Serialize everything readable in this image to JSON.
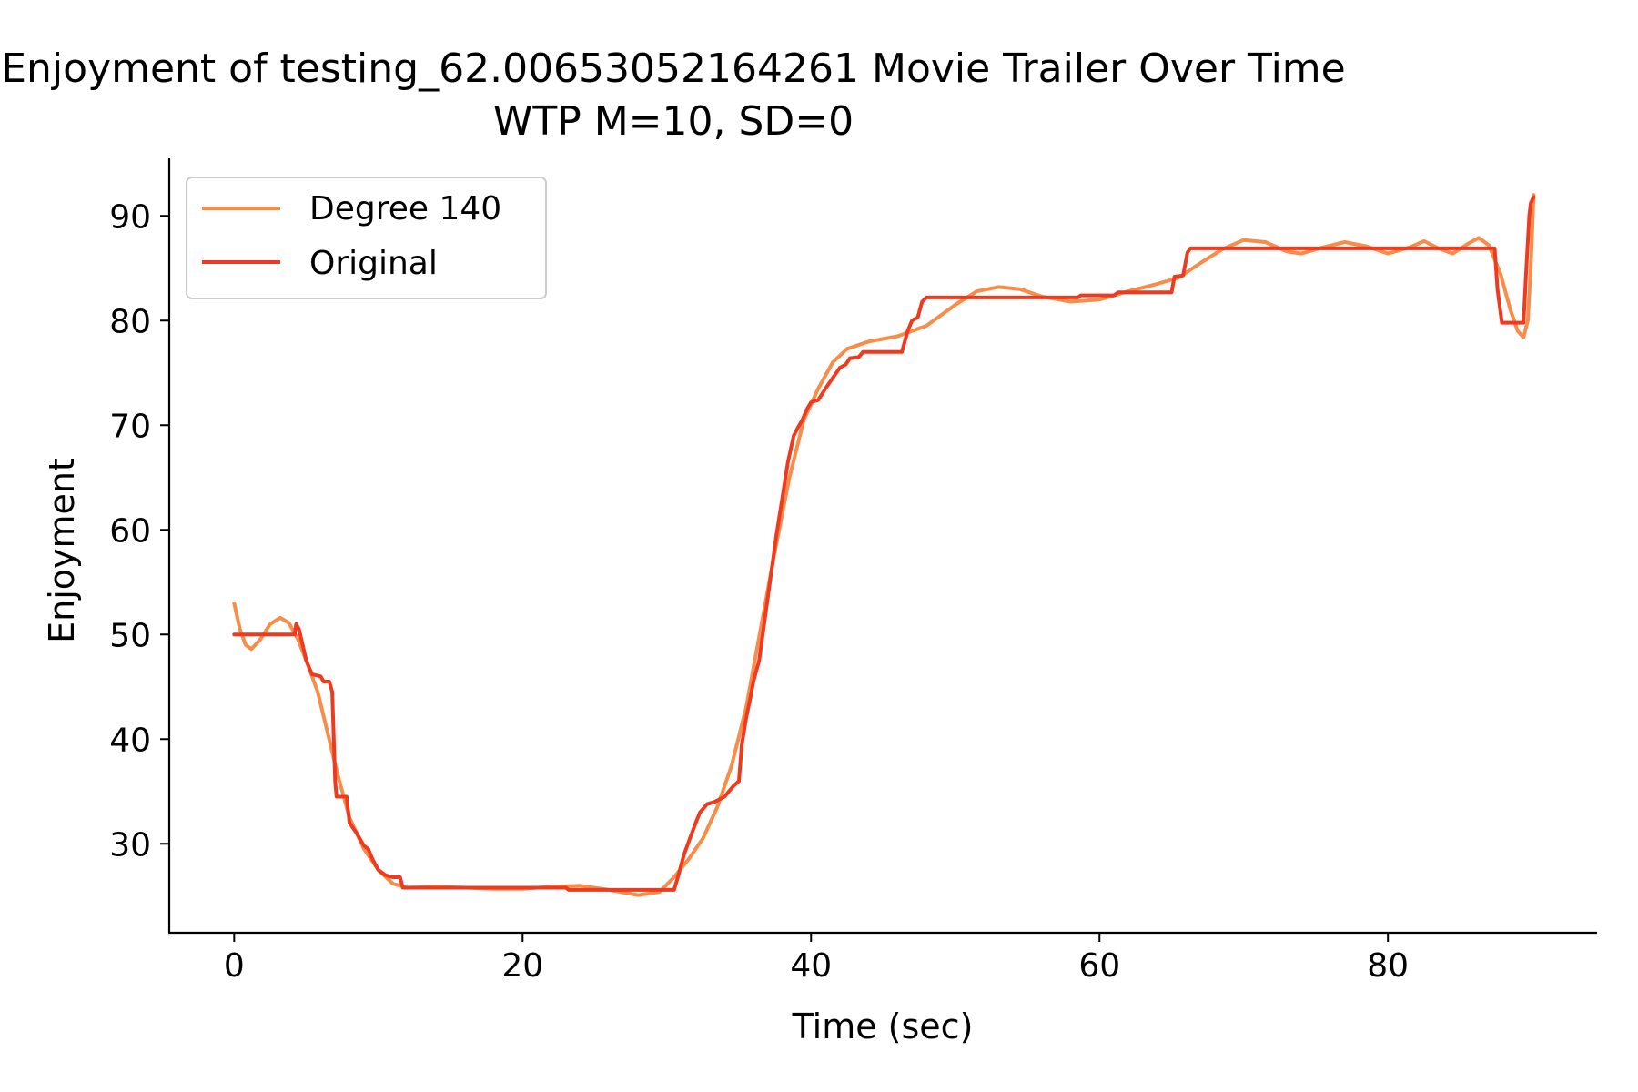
{
  "chart_data": {
    "type": "line",
    "title": "Enjoyment of testing_62.00653052164261 Movie Trailer Over Time",
    "subtitle": "WTP M=10, SD=0",
    "xlabel": "Time (sec)",
    "ylabel": "Enjoyment",
    "xlim": [
      -4.5,
      94.5
    ],
    "ylim": [
      21.5,
      95.5
    ],
    "xticks": [
      0,
      20,
      40,
      60,
      80
    ],
    "yticks": [
      30,
      40,
      50,
      60,
      70,
      80,
      90
    ],
    "grid": false,
    "legend_position": "upper-left",
    "series": [
      {
        "name": "Degree 140",
        "color": "#f88d4a",
        "points": [
          [
            0,
            53
          ],
          [
            0.4,
            50.5
          ],
          [
            0.8,
            49
          ],
          [
            1.2,
            48.6
          ],
          [
            1.8,
            49.5
          ],
          [
            2.5,
            51
          ],
          [
            3.2,
            51.6
          ],
          [
            3.8,
            51.1
          ],
          [
            4.4,
            49.6
          ],
          [
            5,
            47.5
          ],
          [
            5.8,
            44.5
          ],
          [
            6.5,
            40.5
          ],
          [
            7.2,
            36.5
          ],
          [
            8,
            32.5
          ],
          [
            9,
            29.5
          ],
          [
            10,
            27.5
          ],
          [
            11,
            26.2
          ],
          [
            12,
            25.8
          ],
          [
            14,
            25.9
          ],
          [
            16,
            25.8
          ],
          [
            18,
            25.7
          ],
          [
            20,
            25.7
          ],
          [
            22,
            25.9
          ],
          [
            24,
            26
          ],
          [
            26,
            25.6
          ],
          [
            28,
            25.1
          ],
          [
            29.5,
            25.4
          ],
          [
            30.5,
            26.8
          ],
          [
            31.5,
            28.5
          ],
          [
            32.5,
            30.5
          ],
          [
            33.5,
            33.5
          ],
          [
            34.5,
            37.5
          ],
          [
            35.5,
            43
          ],
          [
            36.5,
            50.5
          ],
          [
            37.5,
            58
          ],
          [
            38.5,
            65
          ],
          [
            39.5,
            70.5
          ],
          [
            40.5,
            73.5
          ],
          [
            41.5,
            76
          ],
          [
            42.5,
            77.3
          ],
          [
            44,
            78
          ],
          [
            46,
            78.5
          ],
          [
            48,
            79.5
          ],
          [
            50,
            81.5
          ],
          [
            51.5,
            82.8
          ],
          [
            53,
            83.2
          ],
          [
            54.5,
            83
          ],
          [
            56,
            82.3
          ],
          [
            58,
            81.8
          ],
          [
            60,
            82
          ],
          [
            62,
            82.8
          ],
          [
            64,
            83.5
          ],
          [
            65.5,
            84.1
          ],
          [
            67,
            85.5
          ],
          [
            68.5,
            86.8
          ],
          [
            70,
            87.7
          ],
          [
            71.5,
            87.5
          ],
          [
            73,
            86.6
          ],
          [
            74,
            86.4
          ],
          [
            75.5,
            87
          ],
          [
            77,
            87.5
          ],
          [
            78.5,
            87.1
          ],
          [
            80,
            86.4
          ],
          [
            81.5,
            87
          ],
          [
            82.5,
            87.6
          ],
          [
            83.5,
            86.9
          ],
          [
            84.5,
            86.4
          ],
          [
            85.5,
            87.3
          ],
          [
            86.3,
            87.9
          ],
          [
            87,
            87.2
          ],
          [
            87.8,
            84.5
          ],
          [
            88.5,
            81
          ],
          [
            89,
            79
          ],
          [
            89.4,
            78.4
          ],
          [
            89.7,
            80
          ],
          [
            89.9,
            85
          ],
          [
            90.1,
            92
          ]
        ]
      },
      {
        "name": "Original",
        "color": "#f03a20",
        "points": [
          [
            0,
            50
          ],
          [
            4.2,
            50
          ],
          [
            4.3,
            51
          ],
          [
            4.5,
            50.5
          ],
          [
            5,
            47.5
          ],
          [
            5.4,
            46.2
          ],
          [
            6,
            46
          ],
          [
            6.2,
            45.5
          ],
          [
            6.6,
            45.5
          ],
          [
            6.8,
            44.5
          ],
          [
            7,
            36
          ],
          [
            7.1,
            34.5
          ],
          [
            7.8,
            34.5
          ],
          [
            8,
            32
          ],
          [
            8.5,
            31
          ],
          [
            9,
            29.8
          ],
          [
            9.3,
            29.5
          ],
          [
            9.6,
            28.5
          ],
          [
            10,
            27.5
          ],
          [
            10.5,
            27
          ],
          [
            11,
            26.8
          ],
          [
            11.5,
            26.8
          ],
          [
            11.7,
            25.8
          ],
          [
            23,
            25.8
          ],
          [
            23.2,
            25.6
          ],
          [
            30.5,
            25.6
          ],
          [
            30.8,
            27
          ],
          [
            31.2,
            29
          ],
          [
            31.6,
            30.5
          ],
          [
            32,
            32
          ],
          [
            32.3,
            33
          ],
          [
            32.8,
            33.8
          ],
          [
            33.3,
            34
          ],
          [
            34,
            34.5
          ],
          [
            34.6,
            35.5
          ],
          [
            35,
            36
          ],
          [
            35.2,
            39.5
          ],
          [
            35.5,
            42
          ],
          [
            35.8,
            44
          ],
          [
            36,
            45.5
          ],
          [
            36.4,
            47.5
          ],
          [
            36.8,
            51.5
          ],
          [
            37.2,
            55.5
          ],
          [
            37.6,
            59.5
          ],
          [
            38,
            63
          ],
          [
            38.4,
            66.5
          ],
          [
            38.8,
            69
          ],
          [
            39.1,
            69.8
          ],
          [
            39.4,
            70.5
          ],
          [
            39.7,
            71.5
          ],
          [
            40,
            72.2
          ],
          [
            40.5,
            72.4
          ],
          [
            41,
            73.5
          ],
          [
            41.5,
            74.5
          ],
          [
            42,
            75.5
          ],
          [
            42.4,
            75.8
          ],
          [
            42.7,
            76.4
          ],
          [
            43.3,
            76.5
          ],
          [
            43.6,
            77
          ],
          [
            46.3,
            77
          ],
          [
            46.7,
            79
          ],
          [
            47,
            80
          ],
          [
            47.4,
            80.3
          ],
          [
            47.7,
            81.8
          ],
          [
            48,
            82.2
          ],
          [
            50,
            82.2
          ],
          [
            58.5,
            82.2
          ],
          [
            58.7,
            82.4
          ],
          [
            61,
            82.4
          ],
          [
            61.3,
            82.7
          ],
          [
            65,
            82.7
          ],
          [
            65.2,
            84.2
          ],
          [
            65.8,
            84.3
          ],
          [
            66.1,
            86.5
          ],
          [
            66.3,
            86.9
          ],
          [
            87.4,
            86.9
          ],
          [
            87.6,
            83
          ],
          [
            87.9,
            79.8
          ],
          [
            89.4,
            79.8
          ],
          [
            89.6,
            85
          ],
          [
            89.8,
            90
          ],
          [
            89.9,
            91.2
          ],
          [
            90.1,
            91.8
          ]
        ]
      }
    ]
  }
}
